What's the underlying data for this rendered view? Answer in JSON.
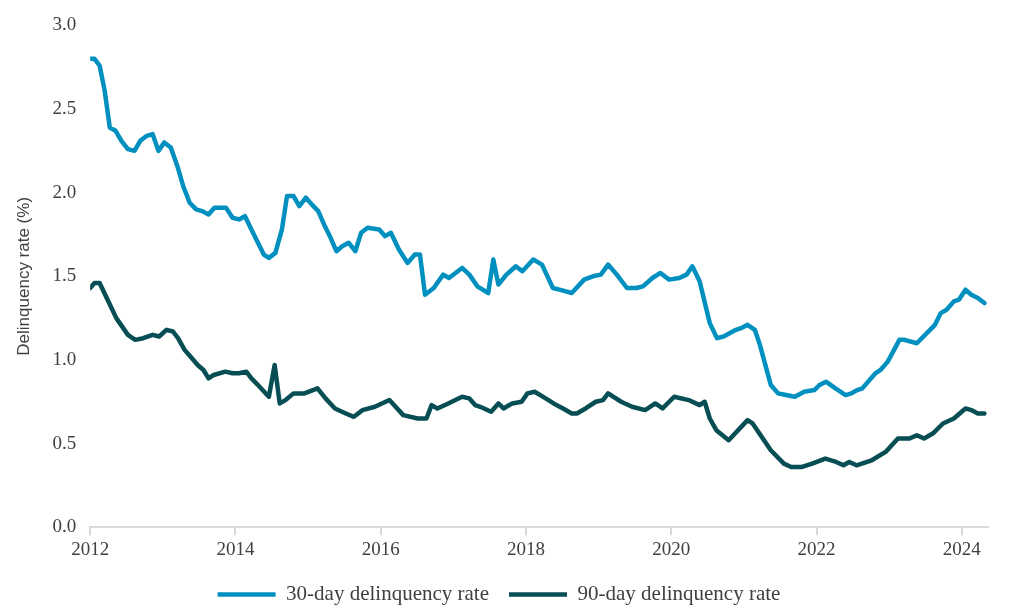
{
  "chart_data": {
    "type": "line",
    "ylabel": "Delinquency rate (%)",
    "legend": "bottom",
    "xlim": [
      2012,
      2024.36
    ],
    "xticks": [
      2012,
      2014,
      2016,
      2018,
      2020,
      2022,
      2024
    ],
    "ylim": [
      0,
      3
    ],
    "yticks": [
      {
        "value": 0,
        "label": "0.0"
      },
      {
        "value": 0.5,
        "label": "0.5"
      },
      {
        "value": 1,
        "label": "1.0"
      },
      {
        "value": 1.5,
        "label": "1.5"
      },
      {
        "value": 2,
        "label": "2.0"
      },
      {
        "value": 2.5,
        "label": "2.5"
      },
      {
        "value": 3,
        "label": "3.0"
      }
    ],
    "series": [
      {
        "name": "30-day delinquency rate",
        "color": "#0090c0",
        "x": [
          2012.0,
          2012.06,
          2012.13,
          2012.2,
          2012.27,
          2012.35,
          2012.43,
          2012.52,
          2012.61,
          2012.69,
          2012.78,
          2012.86,
          2012.94,
          2013.02,
          2013.11,
          2013.2,
          2013.28,
          2013.37,
          2013.46,
          2013.54,
          2013.63,
          2013.71,
          2013.87,
          2013.96,
          2014.05,
          2014.13,
          2014.22,
          2014.31,
          2014.39,
          2014.46,
          2014.55,
          2014.64,
          2014.71,
          2014.8,
          2014.88,
          2014.97,
          2015.05,
          2015.14,
          2015.23,
          2015.31,
          2015.39,
          2015.47,
          2015.56,
          2015.65,
          2015.73,
          2015.82,
          2015.98,
          2016.06,
          2016.14,
          2016.25,
          2016.37,
          2016.47,
          2016.54,
          2016.61,
          2016.73,
          2016.86,
          2016.94,
          2017.12,
          2017.22,
          2017.33,
          2017.48,
          2017.55,
          2017.62,
          2017.73,
          2017.86,
          2017.95,
          2018.1,
          2018.22,
          2018.37,
          2018.46,
          2018.63,
          2018.8,
          2018.92,
          2019.03,
          2019.13,
          2019.25,
          2019.39,
          2019.52,
          2019.61,
          2019.74,
          2019.85,
          2019.97,
          2020.11,
          2020.21,
          2020.29,
          2020.39,
          2020.53,
          2020.63,
          2020.72,
          2020.89,
          2020.96,
          2021.05,
          2021.15,
          2021.22,
          2021.37,
          2021.47,
          2021.58,
          2021.7,
          2021.83,
          2021.97,
          2022.04,
          2022.13,
          2022.26,
          2022.4,
          2022.48,
          2022.56,
          2022.63,
          2022.81,
          2022.88,
          2022.98,
          2023.14,
          2023.21,
          2023.38,
          2023.63,
          2023.71,
          2023.79,
          2023.89,
          2023.96,
          2024.05,
          2024.13,
          2024.22,
          2024.31
        ],
        "values": [
          2.8,
          2.8,
          2.76,
          2.61,
          2.39,
          2.37,
          2.31,
          2.26,
          2.25,
          2.31,
          2.34,
          2.35,
          2.25,
          2.3,
          2.27,
          2.16,
          2.04,
          1.94,
          1.9,
          1.89,
          1.87,
          1.91,
          1.91,
          1.85,
          1.84,
          1.86,
          1.78,
          1.7,
          1.63,
          1.61,
          1.64,
          1.78,
          1.98,
          1.98,
          1.92,
          1.97,
          1.93,
          1.89,
          1.8,
          1.73,
          1.65,
          1.68,
          1.7,
          1.65,
          1.76,
          1.79,
          1.78,
          1.74,
          1.76,
          1.66,
          1.58,
          1.63,
          1.63,
          1.39,
          1.43,
          1.51,
          1.49,
          1.55,
          1.51,
          1.44,
          1.4,
          1.6,
          1.45,
          1.51,
          1.56,
          1.53,
          1.6,
          1.57,
          1.43,
          1.42,
          1.4,
          1.48,
          1.5,
          1.51,
          1.57,
          1.51,
          1.43,
          1.43,
          1.44,
          1.49,
          1.52,
          1.48,
          1.49,
          1.51,
          1.56,
          1.47,
          1.22,
          1.13,
          1.14,
          1.18,
          1.19,
          1.21,
          1.18,
          1.09,
          0.85,
          0.8,
          0.79,
          0.78,
          0.81,
          0.82,
          0.85,
          0.87,
          0.83,
          0.79,
          0.8,
          0.82,
          0.83,
          0.92,
          0.94,
          0.99,
          1.12,
          1.12,
          1.1,
          1.21,
          1.28,
          1.3,
          1.35,
          1.36,
          1.42,
          1.39,
          1.37,
          1.34
        ]
      },
      {
        "name": "90-day delinquency rate",
        "color": "#064e54",
        "x": [
          2012.0,
          2012.06,
          2012.13,
          2012.24,
          2012.36,
          2012.52,
          2012.62,
          2012.73,
          2012.86,
          2012.95,
          2013.05,
          2013.14,
          2013.21,
          2013.3,
          2013.38,
          2013.48,
          2013.56,
          2013.63,
          2013.7,
          2013.86,
          2013.96,
          2014.05,
          2014.15,
          2014.22,
          2014.31,
          2014.46,
          2014.54,
          2014.61,
          2014.69,
          2014.8,
          2014.95,
          2015.13,
          2015.24,
          2015.37,
          2015.52,
          2015.63,
          2015.75,
          2015.92,
          2016.12,
          2016.31,
          2016.51,
          2016.63,
          2016.7,
          2016.78,
          2016.93,
          2017.12,
          2017.22,
          2017.3,
          2017.37,
          2017.52,
          2017.62,
          2017.69,
          2017.81,
          2017.94,
          2018.02,
          2018.12,
          2018.27,
          2018.38,
          2018.51,
          2018.63,
          2018.7,
          2018.82,
          2018.96,
          2019.06,
          2019.13,
          2019.31,
          2019.46,
          2019.64,
          2019.78,
          2019.88,
          2020.04,
          2020.24,
          2020.39,
          2020.46,
          2020.53,
          2020.62,
          2020.79,
          2021.05,
          2021.12,
          2021.37,
          2021.55,
          2021.65,
          2021.8,
          2021.94,
          2022.12,
          2022.27,
          2022.37,
          2022.45,
          2022.55,
          2022.76,
          2022.95,
          2023.12,
          2023.28,
          2023.38,
          2023.48,
          2023.6,
          2023.74,
          2023.89,
          2024.05,
          2024.13,
          2024.22,
          2024.31
        ],
        "values": [
          1.43,
          1.46,
          1.46,
          1.36,
          1.25,
          1.15,
          1.12,
          1.13,
          1.15,
          1.14,
          1.18,
          1.17,
          1.13,
          1.06,
          1.02,
          0.97,
          0.94,
          0.89,
          0.91,
          0.93,
          0.92,
          0.92,
          0.93,
          0.89,
          0.85,
          0.78,
          0.97,
          0.74,
          0.76,
          0.8,
          0.8,
          0.83,
          0.77,
          0.71,
          0.68,
          0.66,
          0.7,
          0.72,
          0.76,
          0.67,
          0.65,
          0.65,
          0.73,
          0.71,
          0.74,
          0.78,
          0.77,
          0.73,
          0.72,
          0.69,
          0.74,
          0.71,
          0.74,
          0.75,
          0.8,
          0.81,
          0.77,
          0.74,
          0.71,
          0.68,
          0.68,
          0.71,
          0.75,
          0.76,
          0.8,
          0.75,
          0.72,
          0.7,
          0.74,
          0.71,
          0.78,
          0.76,
          0.73,
          0.75,
          0.65,
          0.58,
          0.52,
          0.64,
          0.62,
          0.46,
          0.38,
          0.36,
          0.36,
          0.38,
          0.41,
          0.39,
          0.37,
          0.39,
          0.37,
          0.4,
          0.45,
          0.53,
          0.53,
          0.55,
          0.53,
          0.56,
          0.62,
          0.65,
          0.71,
          0.7,
          0.68,
          0.68
        ]
      }
    ]
  }
}
